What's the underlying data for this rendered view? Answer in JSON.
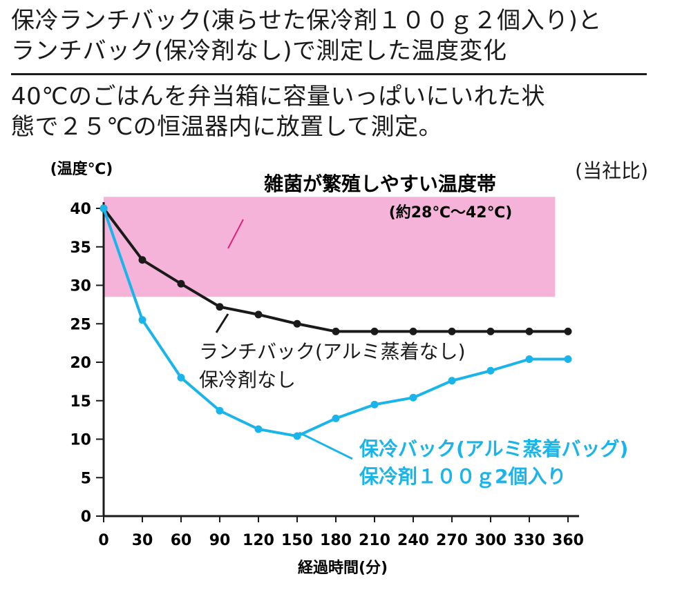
{
  "title": "保冷ランチバック(凍らせた保冷剤１００ｇ２個入り)と\nランチバック(保冷剤なし)で測定した温度変化",
  "subtitle": "40℃のごはんを弁当箱に容量いっぱいにいれた状\n態で２５℃の恒温器内に放置して測定。",
  "note": "(当社比)",
  "colors": {
    "band": "#f6b3d9",
    "black_series": "#1a1a1a",
    "blue_series": "#19b4ea",
    "band_pointer": "#e0207a"
  },
  "chart_data": {
    "type": "line",
    "ylabel": "(温度℃)",
    "xlabel": "経過時間(分)",
    "x": [
      0,
      30,
      60,
      90,
      120,
      150,
      180,
      210,
      240,
      270,
      300,
      330,
      360
    ],
    "xticks": [
      "0",
      "30",
      "60",
      "90",
      "120",
      "150",
      "180",
      "210",
      "240",
      "270",
      "300",
      "330",
      "360"
    ],
    "yticks": [
      "0",
      "5",
      "10",
      "15",
      "20",
      "25",
      "30",
      "35",
      "40"
    ],
    "xlim": [
      0,
      360
    ],
    "ylim": [
      0,
      40
    ],
    "band": {
      "label": "雑菌が繁殖しやすい温度帯",
      "sublabel": "(約28℃〜42℃)",
      "ymin": 28.5,
      "ymax": 41.5,
      "xmin": 0,
      "xmax": 350
    },
    "series": [
      {
        "label_lines": [
          "ランチバック(アルミ蒸着なし)",
          "保冷剤なし"
        ],
        "values": [
          40,
          33.3,
          30.2,
          27.2,
          26.2,
          25.0,
          24.0,
          24.0,
          24.0,
          24.0,
          24.0,
          24.0,
          24.0
        ]
      },
      {
        "label_lines": [
          "保冷バック(アルミ蒸着バッグ)",
          "保冷剤１００ｇ2個入り"
        ],
        "values": [
          40,
          25.5,
          18.0,
          13.7,
          11.3,
          10.4,
          12.7,
          14.5,
          15.4,
          17.6,
          18.9,
          20.4,
          20.4
        ]
      }
    ]
  }
}
